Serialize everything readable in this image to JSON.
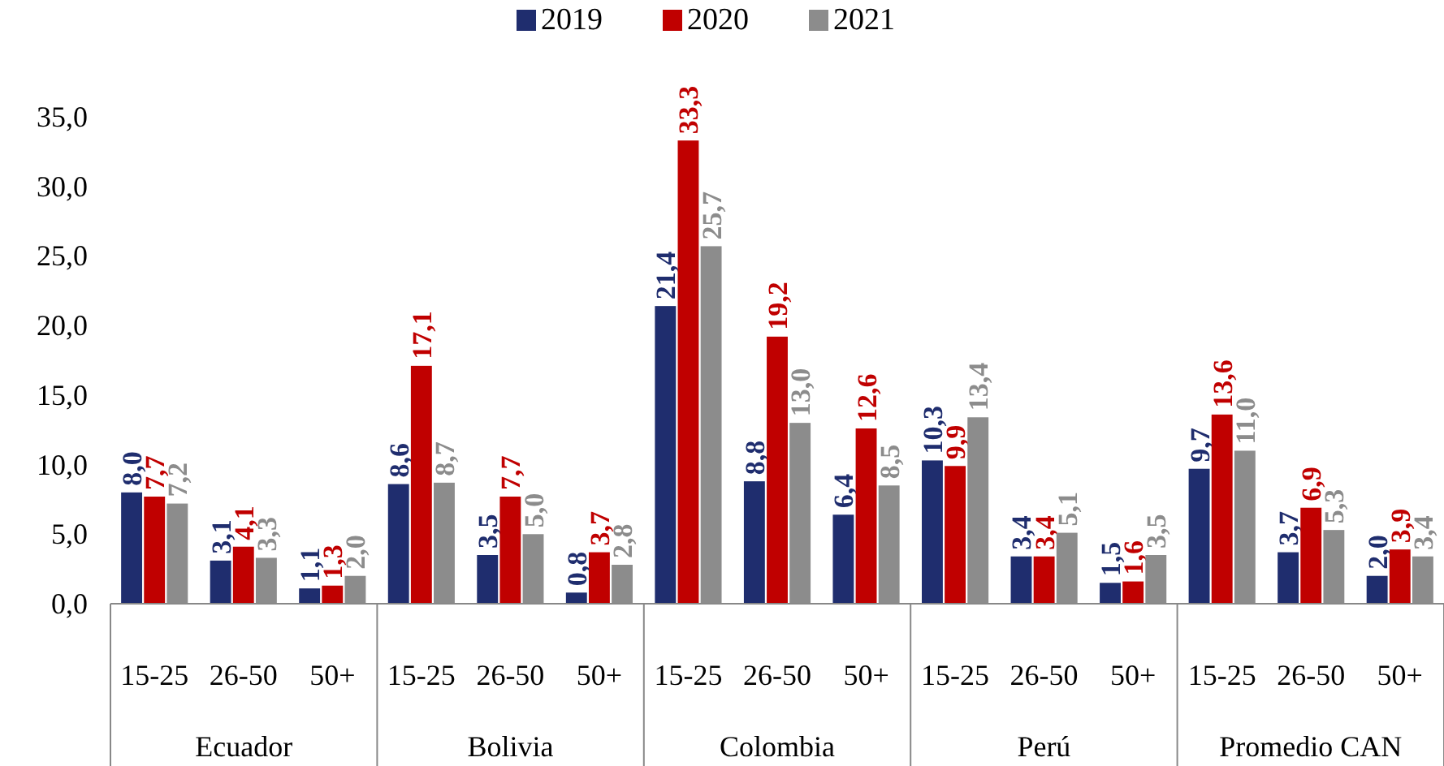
{
  "chart_data": {
    "type": "bar",
    "categories": [
      "15-25",
      "26-50",
      "50+",
      "15-25",
      "26-50",
      "50+",
      "15-25",
      "26-50",
      "50+",
      "15-25",
      "26-50",
      "50+",
      "15-25",
      "26-50",
      "50+"
    ],
    "annotations": [
      "Ecuador",
      "Bolivia",
      "Colombia",
      "Perú",
      "Promedio CAN"
    ],
    "series": [
      {
        "name": "2019",
        "color": "#1f2d6e",
        "values": [
          8.0,
          3.1,
          1.1,
          8.6,
          3.5,
          0.8,
          21.4,
          8.8,
          6.4,
          10.3,
          3.4,
          1.5,
          9.7,
          3.7,
          2.0
        ],
        "value_labels": [
          "8,0",
          "3,1",
          "1,1",
          "8,6",
          "3,5",
          "0,8",
          "21,4",
          "8,8",
          "6,4",
          "10,3",
          "3,4",
          "1,5",
          "9,7",
          "3,7",
          "2,0"
        ]
      },
      {
        "name": "2020",
        "color": "#c00000",
        "values": [
          7.7,
          4.1,
          1.3,
          17.1,
          7.7,
          3.7,
          33.3,
          19.2,
          12.6,
          9.9,
          3.4,
          1.6,
          13.6,
          6.9,
          3.9
        ],
        "value_labels": [
          "7,7",
          "4,1",
          "1,3",
          "17,1",
          "7,7",
          "3,7",
          "33,3",
          "19,2",
          "12,6",
          "9,9",
          "3,4",
          "1,6",
          "13,6",
          "6,9",
          "3,9"
        ]
      },
      {
        "name": "2021",
        "color": "#8c8c8c",
        "values": [
          7.2,
          3.3,
          2.0,
          8.7,
          5.0,
          2.8,
          25.7,
          13.0,
          8.5,
          13.4,
          5.1,
          3.5,
          11.0,
          5.3,
          3.4
        ],
        "value_labels": [
          "7,2",
          "3,3",
          "2,0",
          "8,7",
          "5,0",
          "2,8",
          "25,7",
          "13,0",
          "8,5",
          "13,4",
          "5,1",
          "3,5",
          "11,0",
          "5,3",
          "3,4"
        ]
      }
    ],
    "ylim": [
      0,
      35
    ],
    "yticks": [
      {
        "value": 0,
        "label": "0,0"
      },
      {
        "value": 5,
        "label": "5,0"
      },
      {
        "value": 10,
        "label": "10,0"
      },
      {
        "value": 15,
        "label": "15,0"
      },
      {
        "value": 20,
        "label": "20,0"
      },
      {
        "value": 25,
        "label": "25,0"
      },
      {
        "value": 30,
        "label": "30,0"
      },
      {
        "value": 35,
        "label": "35,0"
      }
    ],
    "legend": "top",
    "grid": false
  }
}
